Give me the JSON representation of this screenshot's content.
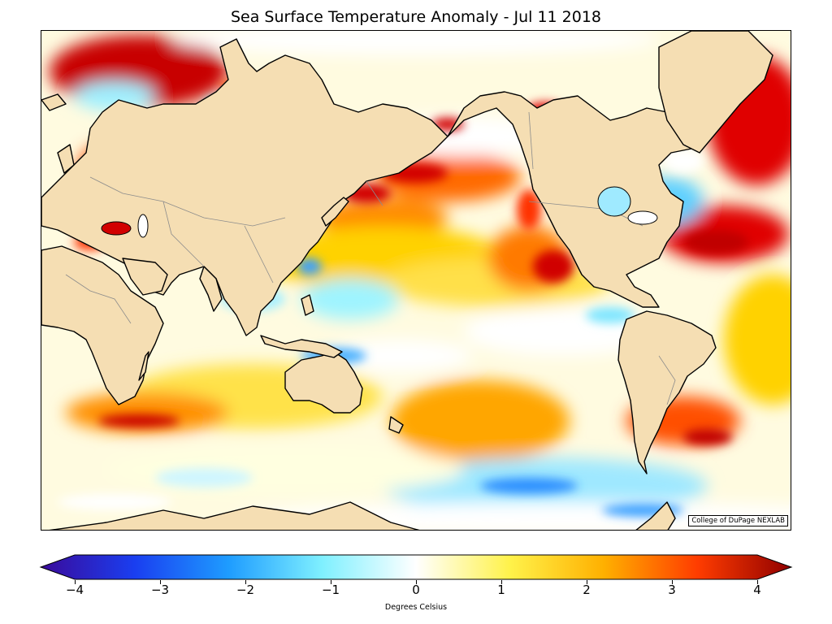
{
  "title": "Sea Surface Temperature Anomaly - Jul 11 2018",
  "credit": "College of DuPage NEXLAB",
  "colorbar": {
    "label": "Degrees Celsius",
    "min": -4,
    "max": 4,
    "ticks": [
      "−4",
      "−3",
      "−2",
      "−1",
      "0",
      "1",
      "2",
      "3",
      "4"
    ],
    "tick_values": [
      -4,
      -3,
      -2,
      -1,
      0,
      1,
      2,
      3,
      4
    ],
    "colors": [
      "#3a0a9a",
      "#1a3ef0",
      "#1e9cff",
      "#7ff0ff",
      "#ffffff",
      "#fff24a",
      "#ffb000",
      "#ff3c00",
      "#900000"
    ]
  },
  "map_colors": {
    "land": "#f5deb3",
    "coastline": "#000000",
    "borders": "#8c8c8c",
    "ocean_neutral": "#ffffff"
  }
}
